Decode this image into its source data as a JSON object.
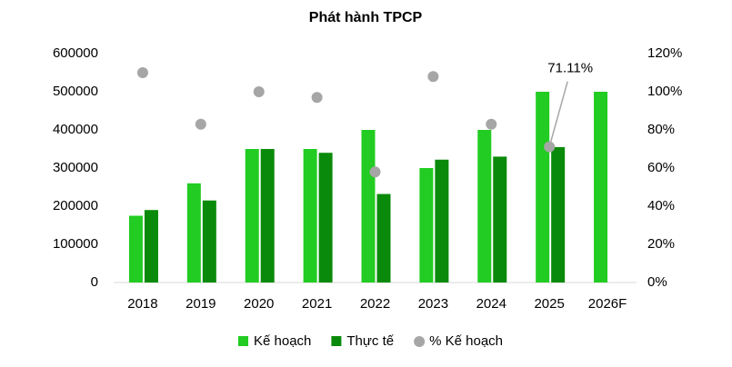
{
  "chart_data": {
    "type": "bar",
    "title": "Phát hành TPCP",
    "categories": [
      "2018",
      "2019",
      "2020",
      "2021",
      "2022",
      "2023",
      "2024",
      "2025",
      "2026F"
    ],
    "series": [
      {
        "name": "Kế hoạch",
        "color": "#22cc22",
        "values": [
          175000,
          260000,
          350000,
          350000,
          400000,
          300000,
          400000,
          500000,
          500000
        ]
      },
      {
        "name": "Thực tế",
        "color": "#0a8a0a",
        "values": [
          190000,
          215000,
          350000,
          340000,
          232000,
          322000,
          330000,
          355000,
          null
        ]
      },
      {
        "name": "% Kế hoạch",
        "color": "#a6a6a6",
        "axis": "y2",
        "values": [
          110,
          83,
          100,
          97,
          58,
          108,
          83,
          71.11,
          null
        ],
        "value_labels": [
          null,
          null,
          null,
          null,
          null,
          null,
          null,
          "71.11%",
          null
        ]
      }
    ],
    "ylim": [
      0,
      600000
    ],
    "yticks": [
      0,
      100000,
      200000,
      300000,
      400000,
      500000,
      600000
    ],
    "y2lim": [
      0,
      120
    ],
    "y2ticks": [
      {
        "value": 0,
        "label": "0%"
      },
      {
        "value": 20,
        "label": "20%"
      },
      {
        "value": 40,
        "label": "40%"
      },
      {
        "value": 60,
        "label": "60%"
      },
      {
        "value": 80,
        "label": "80%"
      },
      {
        "value": 100,
        "label": "100%"
      },
      {
        "value": 120,
        "label": "120%"
      }
    ],
    "grid": false,
    "legend": "bottom"
  }
}
